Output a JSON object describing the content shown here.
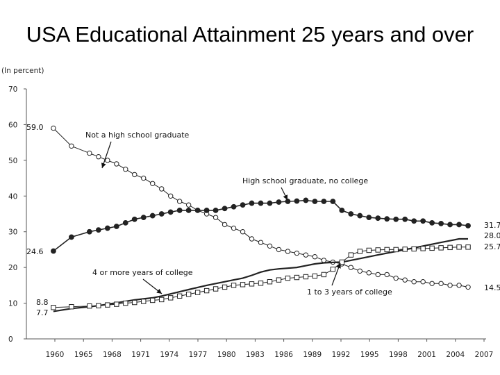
{
  "slide": {
    "title": "USA Educational Attainment 25 years and over"
  },
  "chart_data": {
    "type": "line",
    "title": "USA Educational Attainment 25 years and over",
    "ylabel": "(In percent)",
    "ylim": [
      0,
      70
    ],
    "yticks": [
      0,
      10,
      20,
      30,
      40,
      50,
      60,
      70
    ],
    "xlim": [
      1957,
      2008
    ],
    "x_tick_labels": [
      "1960",
      "1965",
      "1968",
      "1971",
      "1974",
      "1977",
      "1980",
      "1983",
      "1986",
      "1989",
      "1992",
      "1995",
      "1998",
      "2001",
      "2004",
      "2007"
    ],
    "x": [
      1960,
      1962,
      1964,
      1965,
      1966,
      1967,
      1968,
      1969,
      1970,
      1971,
      1972,
      1973,
      1974,
      1975,
      1976,
      1977,
      1978,
      1979,
      1980,
      1981,
      1982,
      1983,
      1984,
      1985,
      1986,
      1987,
      1988,
      1989,
      1990,
      1991,
      1992,
      1993,
      1994,
      1995,
      1996,
      1997,
      1998,
      1999,
      2000,
      2001,
      2002,
      2003,
      2004,
      2005,
      2006
    ],
    "series": [
      {
        "name": "Not a high school graduate",
        "marker": "open-circle",
        "values": [
          59.0,
          54.0,
          52.0,
          51.0,
          50.0,
          49.0,
          47.5,
          46.0,
          45.0,
          43.5,
          42.0,
          40.0,
          38.5,
          37.5,
          36.0,
          35.0,
          34.0,
          32.0,
          31.0,
          30.0,
          28.0,
          27.0,
          26.0,
          25.0,
          24.5,
          24.0,
          23.5,
          23.0,
          22.0,
          21.5,
          21.0,
          20.0,
          19.0,
          18.5,
          18.0,
          18.0,
          17.0,
          16.5,
          16.0,
          16.0,
          15.5,
          15.5,
          15.0,
          15.0,
          14.5
        ]
      },
      {
        "name": "High school graduate, no college",
        "marker": "filled-circle",
        "values": [
          24.6,
          28.5,
          30.0,
          30.5,
          31.0,
          31.5,
          32.5,
          33.5,
          34.0,
          34.5,
          35.0,
          35.5,
          36.0,
          36.0,
          36.0,
          36.0,
          36.0,
          36.5,
          37.0,
          37.5,
          38.0,
          38.0,
          38.0,
          38.3,
          38.5,
          38.6,
          38.8,
          38.5,
          38.5,
          38.5,
          36.0,
          35.0,
          34.5,
          34.0,
          33.8,
          33.6,
          33.5,
          33.5,
          33.0,
          33.0,
          32.5,
          32.3,
          32.0,
          32.0,
          31.7
        ]
      },
      {
        "name": "4 or more years of college",
        "marker": "none",
        "values": [
          7.7,
          8.5,
          9.0,
          9.3,
          9.7,
          10.1,
          10.5,
          10.9,
          11.2,
          11.5,
          12.0,
          12.6,
          13.2,
          13.8,
          14.4,
          15.0,
          15.5,
          16.0,
          16.5,
          17.0,
          17.8,
          18.7,
          19.3,
          19.6,
          19.8,
          20.0,
          20.5,
          21.0,
          21.3,
          21.4,
          21.5,
          22.0,
          22.5,
          23.0,
          23.5,
          24.0,
          24.5,
          25.0,
          25.5,
          26.0,
          26.5,
          27.0,
          27.5,
          28.0,
          28.0
        ]
      },
      {
        "name": "1 to 3 years of college",
        "marker": "open-square",
        "values": [
          8.8,
          9.0,
          9.2,
          9.3,
          9.5,
          9.7,
          10.0,
          10.2,
          10.5,
          10.8,
          11.0,
          11.5,
          12.0,
          12.5,
          13.0,
          13.5,
          14.0,
          14.5,
          15.0,
          15.2,
          15.4,
          15.6,
          16.0,
          16.5,
          17.0,
          17.2,
          17.4,
          17.6,
          18.0,
          19.5,
          21.5,
          23.5,
          24.5,
          24.8,
          24.9,
          25.0,
          25.0,
          25.1,
          25.2,
          25.3,
          25.4,
          25.5,
          25.6,
          25.7,
          25.7
        ]
      }
    ],
    "start_labels": [
      "59.0",
      "24.6",
      "8.8",
      "7.7"
    ],
    "end_labels": [
      "31.7",
      "28.0",
      "25.7",
      "14.5"
    ],
    "annotations": [
      "Not a high school graduate",
      "High school graduate, no college",
      "4 or more years of college",
      "1 to 3 years of college"
    ]
  }
}
